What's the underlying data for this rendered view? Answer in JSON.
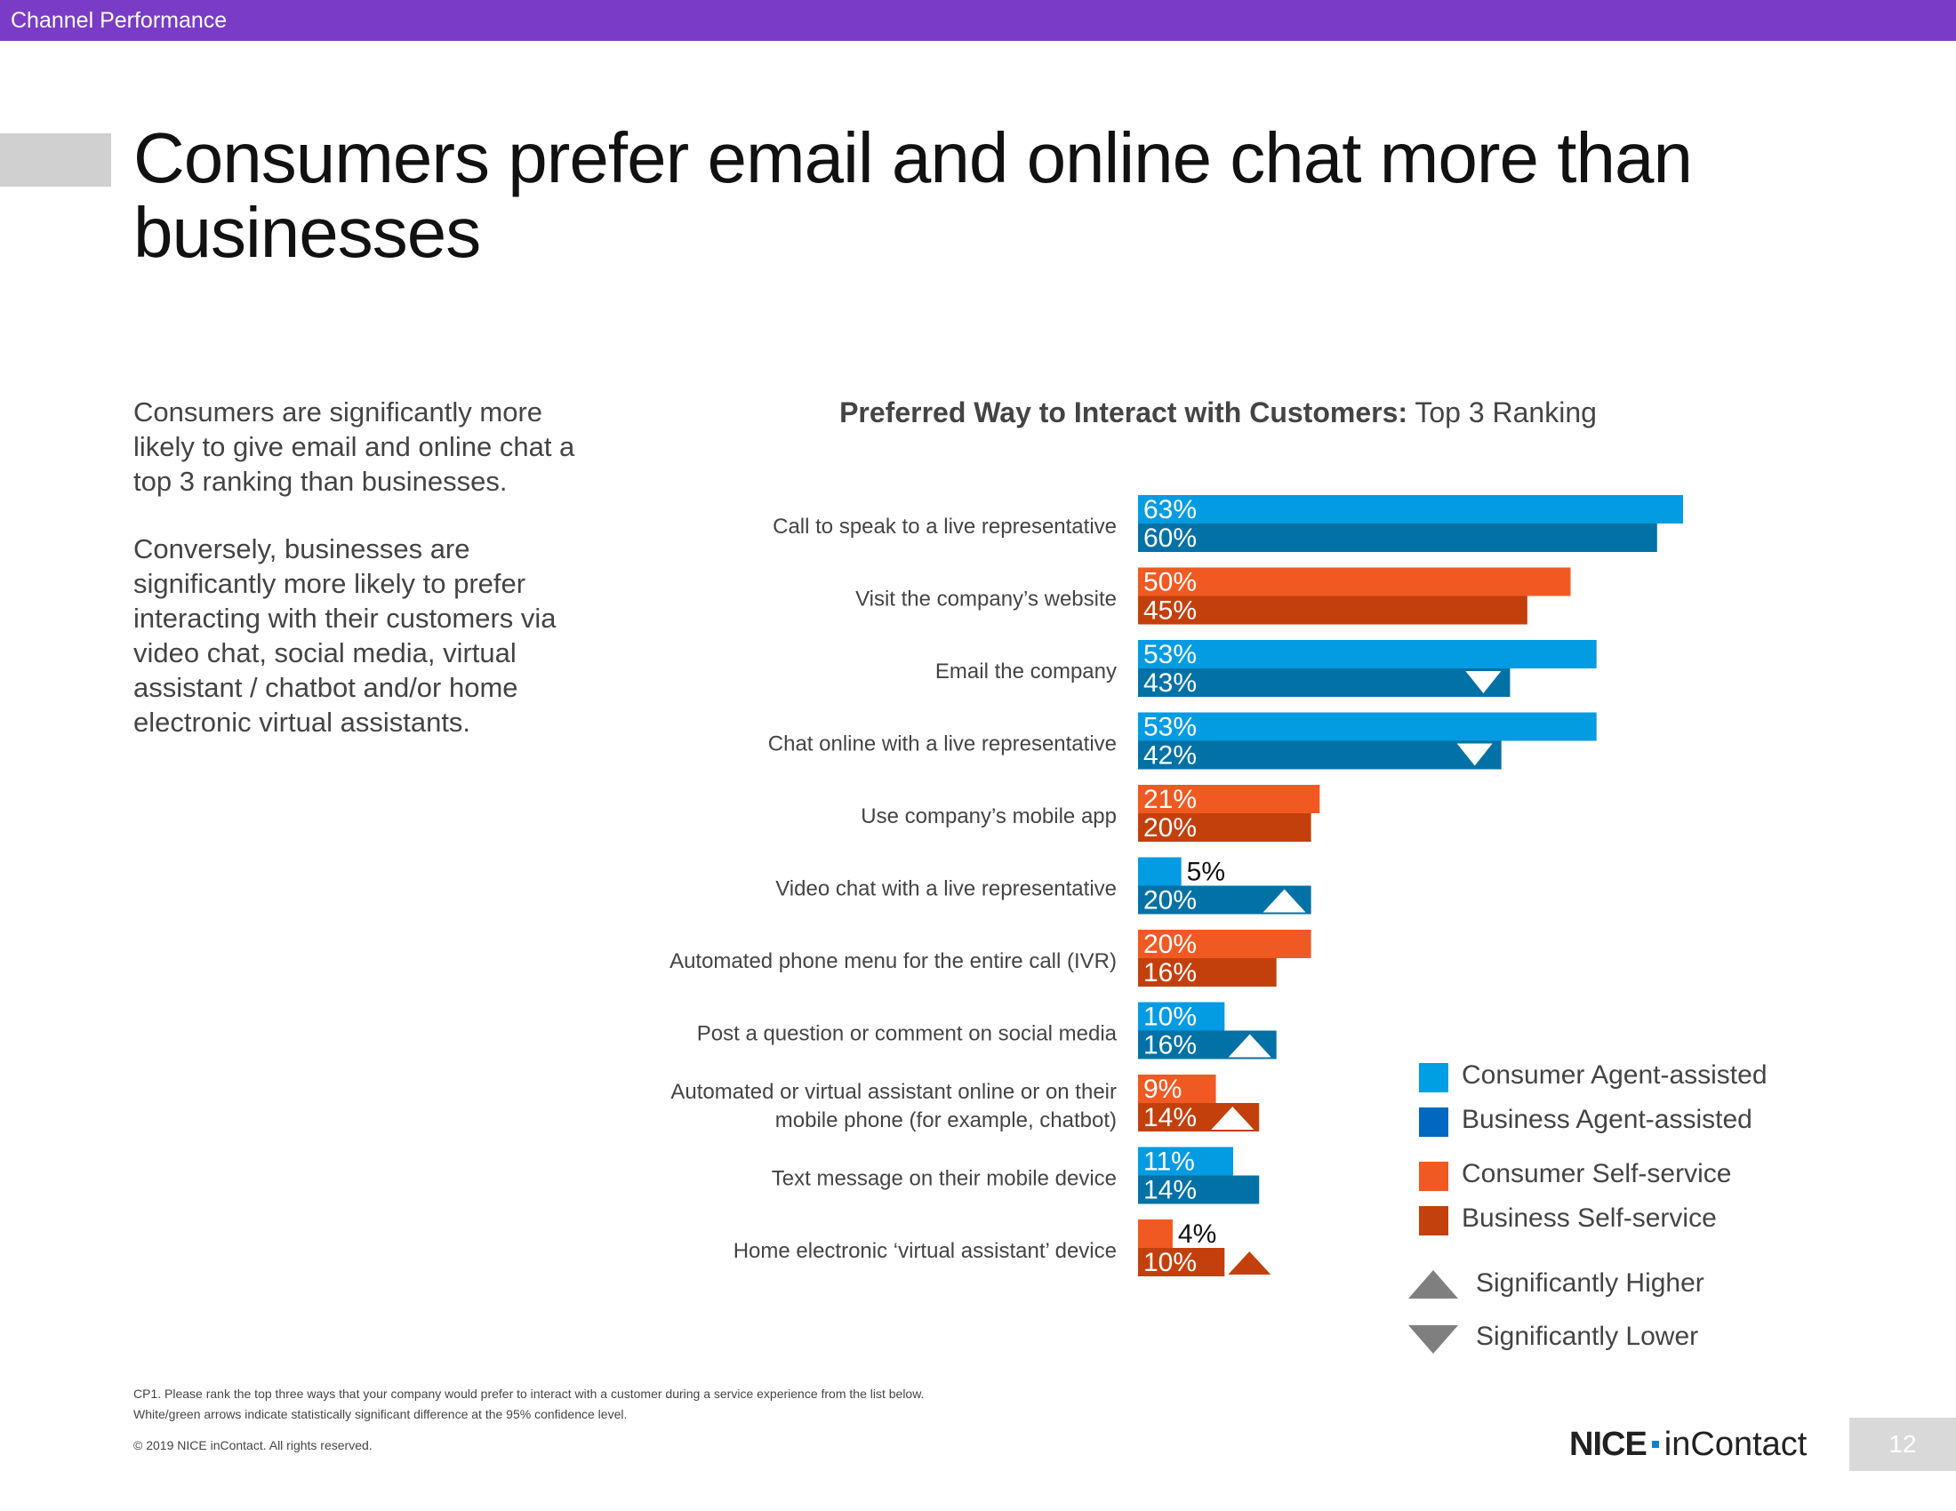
{
  "header": {
    "section": "Channel Performance"
  },
  "title": "Consumers prefer email and online chat more than businesses",
  "intro": {
    "para1": "Consumers are significantly more likely to give email and online chat a top 3 ranking than businesses.",
    "para2": "Conversely, businesses are significantly more likely to prefer interacting with their customers via video chat, social media, virtual assistant / chatbot and/or home electronic virtual assistants."
  },
  "chart_title": {
    "bold": "Preferred Way to Interact with Customers:",
    "regular": "Top 3 Ranking"
  },
  "colors": {
    "consumer_agent": "#039be2",
    "business_agent": "#0271a6",
    "consumer_self": "#f05a22",
    "business_self": "#c3400c",
    "sig_marker": "#ffffff",
    "legend_consumer_agent": "#009ee3",
    "legend_business_agent": "#0068c0",
    "legend_consumer_self": "#f05a22",
    "legend_business_self": "#c2410c",
    "legend_arrow": "#7f7f7f"
  },
  "chart_data": {
    "type": "bar",
    "orientation": "horizontal",
    "categories": [
      "Call to speak to a live representative",
      "Visit the company’s website",
      "Email the company",
      "Chat online with a live representative",
      "Use company’s mobile app",
      "Video chat with a live representative",
      "Automated phone menu for the entire call (IVR)",
      "Post a question or comment on social media",
      "Automated or virtual assistant online or on their mobile phone (for example, chatbot)",
      "Text message on their mobile device",
      "Home electronic ‘virtual assistant’ device"
    ],
    "channel_type": [
      "agent",
      "self",
      "agent",
      "agent",
      "self",
      "agent",
      "self",
      "agent",
      "self",
      "agent",
      "self"
    ],
    "series": [
      {
        "name": "Consumer",
        "values": [
          63,
          50,
          53,
          53,
          21,
          5,
          20,
          10,
          9,
          11,
          4
        ]
      },
      {
        "name": "Business",
        "values": [
          60,
          45,
          43,
          42,
          20,
          20,
          16,
          16,
          14,
          14,
          10
        ],
        "significance": [
          "",
          "",
          "lower",
          "lower",
          "",
          "higher",
          "",
          "higher",
          "higher",
          "",
          "higher"
        ]
      }
    ],
    "value_suffix": "%",
    "legend": [
      {
        "label": "Consumer Agent-assisted",
        "color_key": "legend_consumer_agent"
      },
      {
        "label": "Business Agent-assisted",
        "color_key": "legend_business_agent"
      },
      {
        "label": "Consumer Self-service",
        "color_key": "legend_consumer_self"
      },
      {
        "label": "Business Self-service",
        "color_key": "legend_business_self"
      }
    ],
    "markers_legend": [
      {
        "label": "Significantly Higher",
        "shape": "triangle-up"
      },
      {
        "label": "Significantly Lower",
        "shape": "triangle-down"
      }
    ],
    "legend_position": "bottom-right"
  },
  "footnotes": [
    "CP1. Please rank the top three ways that your company would prefer to interact with a customer during a service experience from the list below.",
    "White/green arrows indicate statistically significant difference at the 95% confidence level."
  ],
  "copyright": "© 2019 NICE inContact. All rights reserved.",
  "logo": {
    "part1": "NICE",
    "part2": "inContact"
  },
  "page_number": "12"
}
